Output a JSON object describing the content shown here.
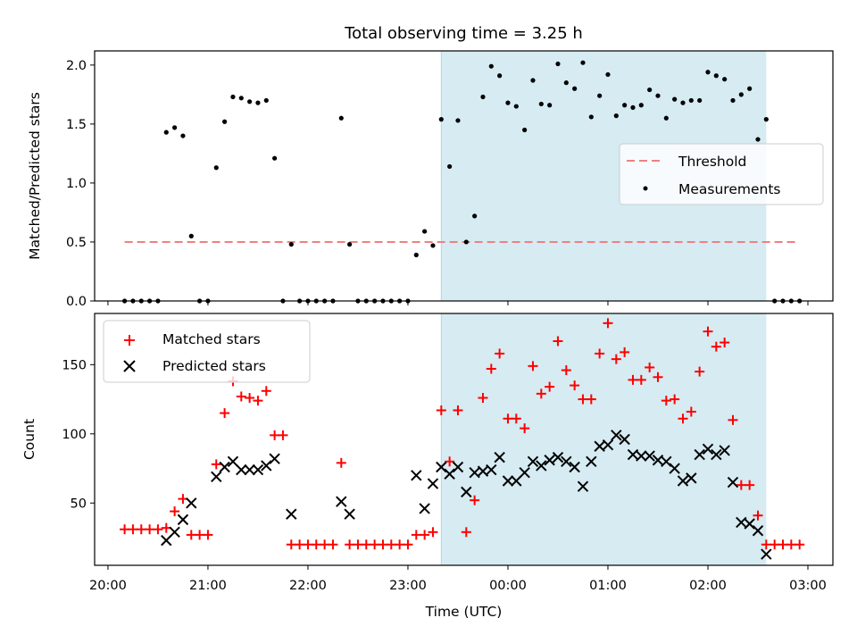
{
  "chart_data": [
    {
      "type": "scatter",
      "title": "Total observing time = 3.25 h",
      "ylabel": "Matched/Predicted stars",
      "xlabel": "",
      "ylim": [
        0,
        2.12
      ],
      "yticks": [
        0.0,
        0.5,
        1.0,
        1.5,
        2.0
      ],
      "ytick_labels": [
        "0.0",
        "0.5",
        "1.0",
        "1.5",
        "2.0"
      ],
      "xlim": [
        "19:52",
        "03:15"
      ],
      "observing_window": [
        "23:20",
        "02:35"
      ],
      "grid": false,
      "legend": "center-right",
      "threshold": {
        "name": "Threshold",
        "value": 0.5,
        "x_range": [
          "20:10",
          "02:54"
        ],
        "color": "#f08080"
      },
      "series": [
        {
          "name": "Measurements",
          "color": "#000000",
          "points": [
            {
              "x": "20:10",
              "y": 0
            },
            {
              "x": "20:15",
              "y": 0
            },
            {
              "x": "20:20",
              "y": 0
            },
            {
              "x": "20:25",
              "y": 0
            },
            {
              "x": "20:30",
              "y": 0
            },
            {
              "x": "20:35",
              "y": 1.43
            },
            {
              "x": "20:40",
              "y": 1.47
            },
            {
              "x": "20:45",
              "y": 1.4
            },
            {
              "x": "20:50",
              "y": 0.55
            },
            {
              "x": "20:55",
              "y": 0
            },
            {
              "x": "21:00",
              "y": 0
            },
            {
              "x": "21:05",
              "y": 1.13
            },
            {
              "x": "21:10",
              "y": 1.52
            },
            {
              "x": "21:15",
              "y": 1.73
            },
            {
              "x": "21:20",
              "y": 1.72
            },
            {
              "x": "21:25",
              "y": 1.69
            },
            {
              "x": "21:30",
              "y": 1.68
            },
            {
              "x": "21:35",
              "y": 1.7
            },
            {
              "x": "21:40",
              "y": 1.21
            },
            {
              "x": "21:45",
              "y": 0
            },
            {
              "x": "21:50",
              "y": 0.48
            },
            {
              "x": "21:55",
              "y": 0
            },
            {
              "x": "22:00",
              "y": 0
            },
            {
              "x": "22:05",
              "y": 0
            },
            {
              "x": "22:10",
              "y": 0
            },
            {
              "x": "22:15",
              "y": 0
            },
            {
              "x": "22:20",
              "y": 1.55
            },
            {
              "x": "22:25",
              "y": 0.48
            },
            {
              "x": "22:30",
              "y": 0
            },
            {
              "x": "22:35",
              "y": 0
            },
            {
              "x": "22:40",
              "y": 0
            },
            {
              "x": "22:45",
              "y": 0
            },
            {
              "x": "22:50",
              "y": 0
            },
            {
              "x": "22:55",
              "y": 0
            },
            {
              "x": "23:00",
              "y": 0
            },
            {
              "x": "23:05",
              "y": 0.39
            },
            {
              "x": "23:10",
              "y": 0.59
            },
            {
              "x": "23:15",
              "y": 0.47
            },
            {
              "x": "23:20",
              "y": 1.54
            },
            {
              "x": "23:25",
              "y": 1.14
            },
            {
              "x": "23:30",
              "y": 1.53
            },
            {
              "x": "23:35",
              "y": 0.5
            },
            {
              "x": "23:40",
              "y": 0.72
            },
            {
              "x": "23:45",
              "y": 1.73
            },
            {
              "x": "23:50",
              "y": 1.99
            },
            {
              "x": "23:55",
              "y": 1.91
            },
            {
              "x": "00:00",
              "y": 1.68
            },
            {
              "x": "00:05",
              "y": 1.65
            },
            {
              "x": "00:10",
              "y": 1.45
            },
            {
              "x": "00:15",
              "y": 1.87
            },
            {
              "x": "00:20",
              "y": 1.67
            },
            {
              "x": "00:25",
              "y": 1.66
            },
            {
              "x": "00:30",
              "y": 2.01
            },
            {
              "x": "00:35",
              "y": 1.85
            },
            {
              "x": "00:40",
              "y": 1.8
            },
            {
              "x": "00:45",
              "y": 2.02
            },
            {
              "x": "00:50",
              "y": 1.56
            },
            {
              "x": "00:55",
              "y": 1.74
            },
            {
              "x": "01:00",
              "y": 1.92
            },
            {
              "x": "01:05",
              "y": 1.57
            },
            {
              "x": "01:10",
              "y": 1.66
            },
            {
              "x": "01:15",
              "y": 1.64
            },
            {
              "x": "01:20",
              "y": 1.66
            },
            {
              "x": "01:25",
              "y": 1.79
            },
            {
              "x": "01:30",
              "y": 1.74
            },
            {
              "x": "01:35",
              "y": 1.55
            },
            {
              "x": "01:40",
              "y": 1.71
            },
            {
              "x": "01:45",
              "y": 1.68
            },
            {
              "x": "01:50",
              "y": 1.7
            },
            {
              "x": "01:55",
              "y": 1.7
            },
            {
              "x": "02:00",
              "y": 1.94
            },
            {
              "x": "02:05",
              "y": 1.91
            },
            {
              "x": "02:10",
              "y": 1.88
            },
            {
              "x": "02:15",
              "y": 1.7
            },
            {
              "x": "02:20",
              "y": 1.75
            },
            {
              "x": "02:25",
              "y": 1.8
            },
            {
              "x": "02:30",
              "y": 1.37
            },
            {
              "x": "02:35",
              "y": 1.54
            },
            {
              "x": "02:40",
              "y": 0
            },
            {
              "x": "02:45",
              "y": 0
            },
            {
              "x": "02:50",
              "y": 0
            },
            {
              "x": "02:55",
              "y": 0
            }
          ]
        }
      ]
    },
    {
      "type": "scatter",
      "title": "",
      "xlabel": "Time (UTC)",
      "ylabel": "Count",
      "ylim": [
        5,
        187
      ],
      "yticks": [
        50,
        100,
        150
      ],
      "ytick_labels": [
        "50",
        "100",
        "150"
      ],
      "xlim": [
        "19:52",
        "03:15"
      ],
      "xticks": [
        "20:00",
        "21:00",
        "22:00",
        "23:00",
        "00:00",
        "01:00",
        "02:00",
        "03:00"
      ],
      "observing_window": [
        "23:20",
        "02:35"
      ],
      "grid": false,
      "legend": "top-left",
      "series": [
        {
          "name": "Matched stars",
          "marker": "plus",
          "color": "#ff0000",
          "points": [
            {
              "x": "20:10",
              "y": 31
            },
            {
              "x": "20:15",
              "y": 31
            },
            {
              "x": "20:20",
              "y": 31
            },
            {
              "x": "20:25",
              "y": 31
            },
            {
              "x": "20:30",
              "y": 31
            },
            {
              "x": "20:35",
              "y": 32
            },
            {
              "x": "20:40",
              "y": 44
            },
            {
              "x": "20:45",
              "y": 53
            },
            {
              "x": "20:50",
              "y": 27
            },
            {
              "x": "20:55",
              "y": 27
            },
            {
              "x": "21:00",
              "y": 27
            },
            {
              "x": "21:05",
              "y": 78
            },
            {
              "x": "21:10",
              "y": 115
            },
            {
              "x": "21:15",
              "y": 138
            },
            {
              "x": "21:20",
              "y": 127
            },
            {
              "x": "21:25",
              "y": 126
            },
            {
              "x": "21:30",
              "y": 124
            },
            {
              "x": "21:35",
              "y": 131
            },
            {
              "x": "21:40",
              "y": 99
            },
            {
              "x": "21:45",
              "y": 99
            },
            {
              "x": "21:50",
              "y": 20
            },
            {
              "x": "21:55",
              "y": 20
            },
            {
              "x": "22:00",
              "y": 20
            },
            {
              "x": "22:05",
              "y": 20
            },
            {
              "x": "22:10",
              "y": 20
            },
            {
              "x": "22:15",
              "y": 20
            },
            {
              "x": "22:20",
              "y": 79
            },
            {
              "x": "22:25",
              "y": 20
            },
            {
              "x": "22:30",
              "y": 20
            },
            {
              "x": "22:35",
              "y": 20
            },
            {
              "x": "22:40",
              "y": 20
            },
            {
              "x": "22:45",
              "y": 20
            },
            {
              "x": "22:50",
              "y": 20
            },
            {
              "x": "22:55",
              "y": 20
            },
            {
              "x": "23:00",
              "y": 20
            },
            {
              "x": "23:05",
              "y": 27
            },
            {
              "x": "23:10",
              "y": 27
            },
            {
              "x": "23:15",
              "y": 29
            },
            {
              "x": "23:20",
              "y": 117
            },
            {
              "x": "23:25",
              "y": 80
            },
            {
              "x": "23:30",
              "y": 117
            },
            {
              "x": "23:35",
              "y": 29
            },
            {
              "x": "23:40",
              "y": 52
            },
            {
              "x": "23:45",
              "y": 126
            },
            {
              "x": "23:50",
              "y": 147
            },
            {
              "x": "23:55",
              "y": 158
            },
            {
              "x": "00:00",
              "y": 111
            },
            {
              "x": "00:05",
              "y": 111
            },
            {
              "x": "00:10",
              "y": 104
            },
            {
              "x": "00:15",
              "y": 149
            },
            {
              "x": "00:20",
              "y": 129
            },
            {
              "x": "00:25",
              "y": 134
            },
            {
              "x": "00:30",
              "y": 167
            },
            {
              "x": "00:35",
              "y": 146
            },
            {
              "x": "00:40",
              "y": 135
            },
            {
              "x": "00:45",
              "y": 125
            },
            {
              "x": "00:50",
              "y": 125
            },
            {
              "x": "00:55",
              "y": 158
            },
            {
              "x": "01:00",
              "y": 180
            },
            {
              "x": "01:05",
              "y": 154
            },
            {
              "x": "01:10",
              "y": 159
            },
            {
              "x": "01:15",
              "y": 139
            },
            {
              "x": "01:20",
              "y": 139
            },
            {
              "x": "01:25",
              "y": 148
            },
            {
              "x": "01:30",
              "y": 141
            },
            {
              "x": "01:35",
              "y": 124
            },
            {
              "x": "01:40",
              "y": 125
            },
            {
              "x": "01:45",
              "y": 111
            },
            {
              "x": "01:50",
              "y": 116
            },
            {
              "x": "01:55",
              "y": 145
            },
            {
              "x": "02:00",
              "y": 174
            },
            {
              "x": "02:05",
              "y": 163
            },
            {
              "x": "02:10",
              "y": 166
            },
            {
              "x": "02:15",
              "y": 110
            },
            {
              "x": "02:20",
              "y": 63
            },
            {
              "x": "02:25",
              "y": 63
            },
            {
              "x": "02:30",
              "y": 41
            },
            {
              "x": "02:35",
              "y": 20
            },
            {
              "x": "02:40",
              "y": 20
            },
            {
              "x": "02:45",
              "y": 20
            },
            {
              "x": "02:50",
              "y": 20
            },
            {
              "x": "02:55",
              "y": 20
            }
          ]
        },
        {
          "name": "Predicted stars",
          "marker": "x",
          "color": "#000000",
          "points": [
            {
              "x": "20:35",
              "y": 23
            },
            {
              "x": "20:40",
              "y": 29
            },
            {
              "x": "20:45",
              "y": 38
            },
            {
              "x": "20:50",
              "y": 50
            },
            {
              "x": "21:05",
              "y": 69
            },
            {
              "x": "21:10",
              "y": 76
            },
            {
              "x": "21:15",
              "y": 80
            },
            {
              "x": "21:20",
              "y": 74
            },
            {
              "x": "21:25",
              "y": 74
            },
            {
              "x": "21:30",
              "y": 74
            },
            {
              "x": "21:35",
              "y": 77
            },
            {
              "x": "21:40",
              "y": 82
            },
            {
              "x": "21:50",
              "y": 42
            },
            {
              "x": "22:20",
              "y": 51
            },
            {
              "x": "22:25",
              "y": 42
            },
            {
              "x": "23:05",
              "y": 70
            },
            {
              "x": "23:10",
              "y": 46
            },
            {
              "x": "23:15",
              "y": 64
            },
            {
              "x": "23:20",
              "y": 76
            },
            {
              "x": "23:25",
              "y": 71
            },
            {
              "x": "23:30",
              "y": 76
            },
            {
              "x": "23:35",
              "y": 58
            },
            {
              "x": "23:40",
              "y": 72
            },
            {
              "x": "23:45",
              "y": 73
            },
            {
              "x": "23:50",
              "y": 74
            },
            {
              "x": "23:55",
              "y": 83
            },
            {
              "x": "00:00",
              "y": 66
            },
            {
              "x": "00:05",
              "y": 66
            },
            {
              "x": "00:10",
              "y": 72
            },
            {
              "x": "00:15",
              "y": 80
            },
            {
              "x": "00:20",
              "y": 77
            },
            {
              "x": "00:25",
              "y": 81
            },
            {
              "x": "00:30",
              "y": 83
            },
            {
              "x": "00:35",
              "y": 80
            },
            {
              "x": "00:40",
              "y": 76
            },
            {
              "x": "00:45",
              "y": 62
            },
            {
              "x": "00:50",
              "y": 80
            },
            {
              "x": "00:55",
              "y": 91
            },
            {
              "x": "01:00",
              "y": 92
            },
            {
              "x": "01:05",
              "y": 99
            },
            {
              "x": "01:10",
              "y": 96
            },
            {
              "x": "01:15",
              "y": 85
            },
            {
              "x": "01:20",
              "y": 84
            },
            {
              "x": "01:25",
              "y": 84
            },
            {
              "x": "01:30",
              "y": 81
            },
            {
              "x": "01:35",
              "y": 80
            },
            {
              "x": "01:40",
              "y": 75
            },
            {
              "x": "01:45",
              "y": 66
            },
            {
              "x": "01:50",
              "y": 68
            },
            {
              "x": "01:55",
              "y": 85
            },
            {
              "x": "02:00",
              "y": 89
            },
            {
              "x": "02:05",
              "y": 85
            },
            {
              "x": "02:10",
              "y": 88
            },
            {
              "x": "02:15",
              "y": 65
            },
            {
              "x": "02:20",
              "y": 36
            },
            {
              "x": "02:25",
              "y": 35
            },
            {
              "x": "02:30",
              "y": 30
            },
            {
              "x": "02:35",
              "y": 13
            }
          ]
        }
      ]
    }
  ]
}
